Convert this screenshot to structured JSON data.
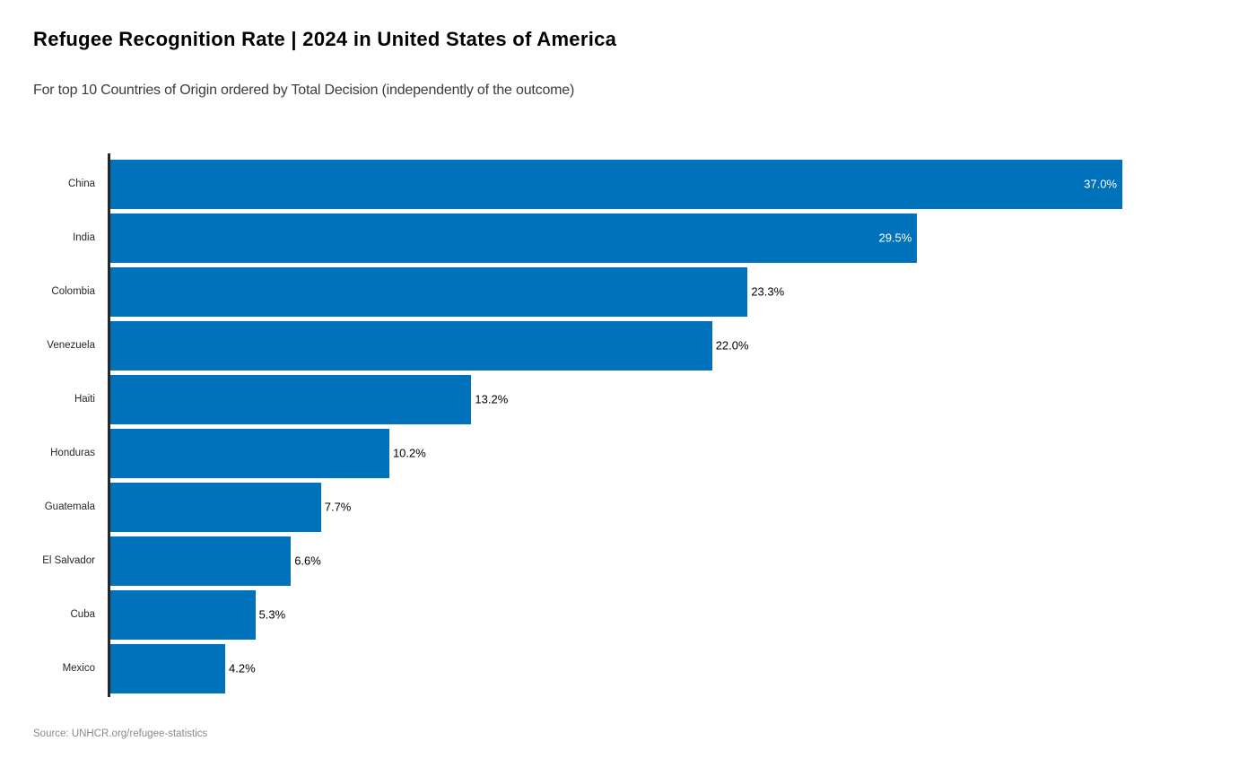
{
  "header": {
    "title": "Refugee Recognition Rate | 2024 in United States of America",
    "subtitle": "For top 10 Countries of Origin ordered by Total Decision (independently of the outcome)"
  },
  "footer": {
    "source": "Source: UNHCR.org/refugee-statistics"
  },
  "chart_data": {
    "type": "bar",
    "orientation": "horizontal",
    "title": "Refugee Recognition Rate | 2024 in United States of America",
    "subtitle": "For top 10 Countries of Origin ordered by Total Decision (independently of the outcome)",
    "categories": [
      "China",
      "India",
      "Colombia",
      "Venezuela",
      "Haiti",
      "Honduras",
      "Guatemala",
      "El Salvador",
      "Cuba",
      "Mexico"
    ],
    "values": [
      37.0,
      29.5,
      23.3,
      22.0,
      13.2,
      10.2,
      7.7,
      6.6,
      5.3,
      4.2
    ],
    "value_labels": [
      "37.0%",
      "29.5%",
      "23.3%",
      "22.0%",
      "13.2%",
      "10.2%",
      "7.7%",
      "6.6%",
      "5.3%",
      "4.2%"
    ],
    "label_inside": [
      true,
      true,
      false,
      false,
      false,
      false,
      false,
      false,
      false,
      false
    ],
    "xlabel": "",
    "ylabel": "",
    "xlim": [
      0,
      37.0
    ],
    "grid": false,
    "legend": null,
    "colors": {
      "bar": "#0072BC",
      "inside_value_label": "#ffffff",
      "outside_value_label": "#000000",
      "category_label": "#262626",
      "axis_spine": "#262626",
      "title": "#000000",
      "subtitle": "#3c3c3c",
      "source": "#8a8a8a"
    }
  }
}
